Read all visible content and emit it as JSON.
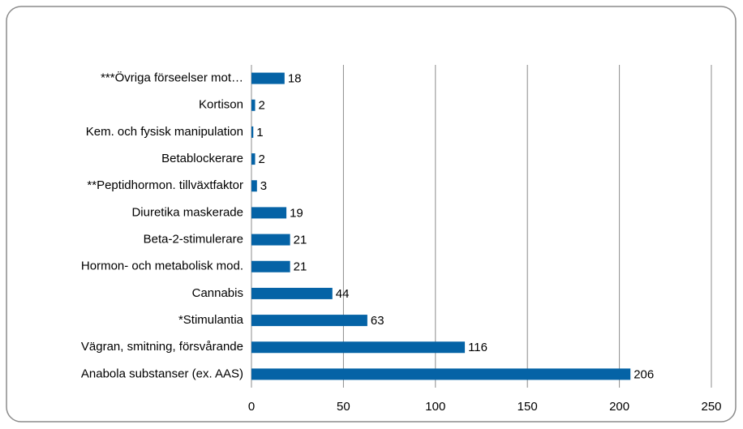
{
  "chart_data": {
    "type": "bar",
    "orientation": "horizontal",
    "categories": [
      "***Övriga förseelser mot…",
      "Kortison",
      "Kem. och fysisk manipulation",
      "Betablockerare",
      "**Peptidhormon. tillväxtfaktor",
      "Diuretika maskerade",
      "Beta-2-stimulerare",
      "Hormon- och metabolisk mod.",
      "Cannabis",
      "*Stimulantia",
      "Vägran, smitning, försvårande",
      "Anabola substanser (ex. AAS)"
    ],
    "values": [
      18,
      2,
      1,
      2,
      3,
      19,
      21,
      21,
      44,
      63,
      116,
      206
    ],
    "color": "#0563a6",
    "xlim": [
      0,
      250
    ],
    "xticks": [
      0,
      50,
      100,
      150,
      200,
      250
    ],
    "grid": true
  }
}
